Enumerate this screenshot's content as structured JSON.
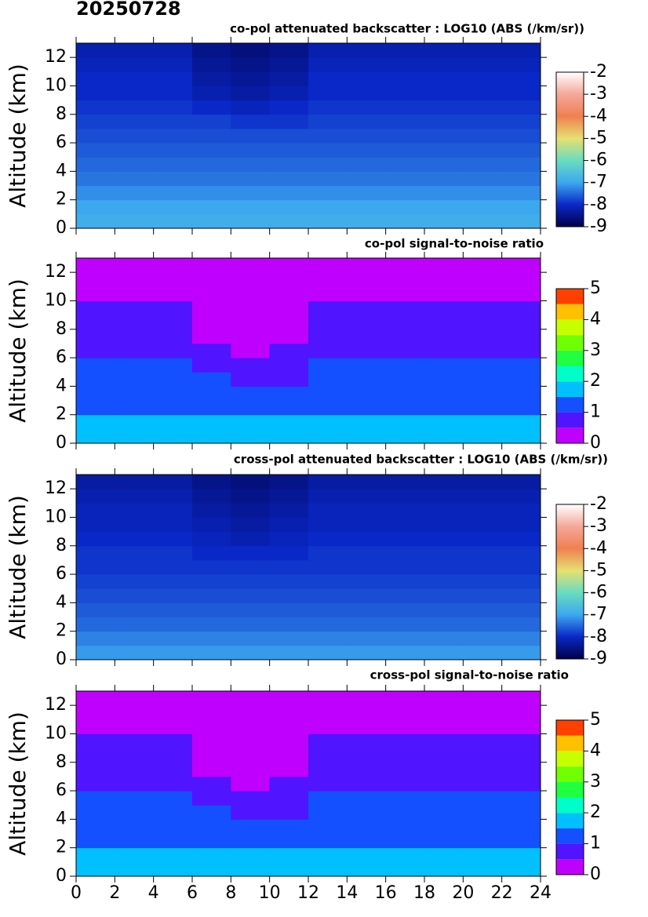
{
  "title": "20250728",
  "chart_data": [
    {
      "type": "heatmap",
      "title": "co-pol attenuated backscatter : LOG10 (ABS (/km/sr))",
      "ylabel": "Altitude (km)",
      "x_bins": [
        0,
        2,
        4,
        6,
        8,
        10,
        12,
        14,
        16,
        18,
        20,
        22,
        24
      ],
      "y_bins": [
        0,
        1,
        2,
        3,
        4,
        5,
        6,
        7,
        8,
        9,
        10,
        11,
        12,
        13
      ],
      "values": [
        [
          -6.9,
          -6.9,
          -6.9,
          -6.9,
          -6.9,
          -6.9,
          -6.9,
          -6.9,
          -6.9,
          -6.9,
          -6.9,
          -6.9
        ],
        [
          -7.0,
          -7.0,
          -7.0,
          -7.0,
          -7.0,
          -7.0,
          -7.0,
          -7.0,
          -7.0,
          -7.0,
          -7.0,
          -7.0
        ],
        [
          -7.2,
          -7.2,
          -7.2,
          -7.2,
          -7.2,
          -7.2,
          -7.2,
          -7.2,
          -7.2,
          -7.2,
          -7.2,
          -7.2
        ],
        [
          -7.4,
          -7.4,
          -7.4,
          -7.4,
          -7.4,
          -7.4,
          -7.4,
          -7.4,
          -7.4,
          -7.4,
          -7.4,
          -7.4
        ],
        [
          -7.5,
          -7.5,
          -7.5,
          -7.5,
          -7.5,
          -7.5,
          -7.5,
          -7.5,
          -7.5,
          -7.5,
          -7.5,
          -7.5
        ],
        [
          -7.6,
          -7.6,
          -7.6,
          -7.6,
          -7.6,
          -7.6,
          -7.6,
          -7.6,
          -7.6,
          -7.6,
          -7.6,
          -7.6
        ],
        [
          -7.7,
          -7.7,
          -7.7,
          -7.7,
          -7.7,
          -7.7,
          -7.7,
          -7.7,
          -7.7,
          -7.7,
          -7.7,
          -7.7
        ],
        [
          -7.8,
          -7.8,
          -7.8,
          -7.8,
          -7.9,
          -7.9,
          -7.8,
          -7.8,
          -7.8,
          -7.8,
          -7.8,
          -7.8
        ],
        [
          -7.9,
          -7.9,
          -7.9,
          -8.0,
          -8.1,
          -8.0,
          -7.9,
          -7.9,
          -7.9,
          -7.9,
          -7.9,
          -7.9
        ],
        [
          -8.0,
          -8.0,
          -8.0,
          -8.2,
          -8.3,
          -8.2,
          -8.0,
          -8.0,
          -8.0,
          -8.0,
          -8.0,
          -8.0
        ],
        [
          -8.0,
          -8.0,
          -8.0,
          -8.3,
          -8.4,
          -8.3,
          -8.0,
          -8.0,
          -8.0,
          -8.0,
          -8.0,
          -8.0
        ],
        [
          -8.1,
          -8.1,
          -8.1,
          -8.4,
          -8.5,
          -8.4,
          -8.1,
          -8.1,
          -8.1,
          -8.1,
          -8.1,
          -8.1
        ],
        [
          -8.2,
          -8.2,
          -8.2,
          -8.5,
          -8.6,
          -8.5,
          -8.2,
          -8.2,
          -8.2,
          -8.2,
          -8.2,
          -8.2
        ]
      ],
      "xlim": [
        0,
        24
      ],
      "xticks": [
        0,
        2,
        4,
        6,
        8,
        10,
        12,
        14,
        16,
        18,
        20,
        22,
        24
      ],
      "show_xtick_labels": false,
      "ylim": [
        0,
        13
      ],
      "yticks": [
        0,
        2,
        4,
        6,
        8,
        10,
        12
      ],
      "colorbar": {
        "lim": [
          -9,
          -2
        ],
        "ticks": [
          -9,
          -8,
          -7,
          -6,
          -5,
          -4,
          -3,
          -2
        ],
        "discrete": false,
        "colors": [
          "#00004a",
          "#0a28c8",
          "#3ca8f0",
          "#6adcc0",
          "#e6e070",
          "#f08050",
          "#f4a898",
          "#ffffff"
        ]
      }
    },
    {
      "type": "heatmap",
      "title": "co-pol signal-to-noise ratio",
      "ylabel": "Altitude (km)",
      "x_bins": [
        0,
        2,
        4,
        6,
        8,
        10,
        12,
        14,
        16,
        18,
        20,
        22,
        24
      ],
      "y_bins": [
        0,
        1,
        2,
        3,
        4,
        5,
        6,
        7,
        8,
        9,
        10,
        11,
        12,
        13
      ],
      "values": [
        [
          1.8,
          1.8,
          1.8,
          1.8,
          1.8,
          1.8,
          1.8,
          1.8,
          1.8,
          1.8,
          1.8,
          1.8
        ],
        [
          1.8,
          1.8,
          1.8,
          1.8,
          1.8,
          1.8,
          1.8,
          1.8,
          1.8,
          1.8,
          1.8,
          1.8
        ],
        [
          1.2,
          1.2,
          1.2,
          1.2,
          1.2,
          1.2,
          1.2,
          1.2,
          1.2,
          1.2,
          1.2,
          1.2
        ],
        [
          1.2,
          1.2,
          1.2,
          1.2,
          1.2,
          1.2,
          1.2,
          1.2,
          1.2,
          1.2,
          1.2,
          1.2
        ],
        [
          1.2,
          1.2,
          1.2,
          1.2,
          0.7,
          0.7,
          1.2,
          1.2,
          1.2,
          1.2,
          1.2,
          1.2
        ],
        [
          1.2,
          1.2,
          1.2,
          0.7,
          0.7,
          0.7,
          1.2,
          1.2,
          1.2,
          1.2,
          1.2,
          1.2
        ],
        [
          0.7,
          0.7,
          0.7,
          0.7,
          0.4,
          0.7,
          0.7,
          0.7,
          0.7,
          0.7,
          0.7,
          0.7
        ],
        [
          0.7,
          0.7,
          0.7,
          0.4,
          0.4,
          0.4,
          0.7,
          0.7,
          0.7,
          0.7,
          0.7,
          0.7
        ],
        [
          0.7,
          0.7,
          0.7,
          0.3,
          0.3,
          0.3,
          0.7,
          0.7,
          0.7,
          0.7,
          0.7,
          0.7
        ],
        [
          0.6,
          0.6,
          0.6,
          0.3,
          0.2,
          0.3,
          0.6,
          0.6,
          0.6,
          0.6,
          0.6,
          0.6
        ],
        [
          0.4,
          0.4,
          0.4,
          0.2,
          0.1,
          0.2,
          0.4,
          0.4,
          0.4,
          0.4,
          0.4,
          0.4
        ],
        [
          0.3,
          0.3,
          0.3,
          0.1,
          0.1,
          0.1,
          0.3,
          0.3,
          0.3,
          0.3,
          0.3,
          0.3
        ],
        [
          0.2,
          0.2,
          0.2,
          0.1,
          0.1,
          0.1,
          0.2,
          0.2,
          0.2,
          0.2,
          0.2,
          0.2
        ]
      ],
      "xlim": [
        0,
        24
      ],
      "xticks": [
        0,
        2,
        4,
        6,
        8,
        10,
        12,
        14,
        16,
        18,
        20,
        22,
        24
      ],
      "show_xtick_labels": false,
      "ylim": [
        0,
        13
      ],
      "yticks": [
        0,
        2,
        4,
        6,
        8,
        10,
        12
      ],
      "colorbar": {
        "lim": [
          0,
          5
        ],
        "ticks": [
          0,
          1,
          2,
          3,
          4,
          5
        ],
        "discrete": true,
        "colors": [
          "#c000ff",
          "#5014ff",
          "#1450ff",
          "#00c0ff",
          "#00ffc8",
          "#20ff40",
          "#70ff00",
          "#c8ff00",
          "#ffc000",
          "#ff4000"
        ]
      }
    },
    {
      "type": "heatmap",
      "title": "cross-pol attenuated backscatter : LOG10 (ABS (/km/sr))",
      "ylabel": "Altitude (km)",
      "x_bins": [
        0,
        2,
        4,
        6,
        8,
        10,
        12,
        14,
        16,
        18,
        20,
        22,
        24
      ],
      "y_bins": [
        0,
        1,
        2,
        3,
        4,
        5,
        6,
        7,
        8,
        9,
        10,
        11,
        12,
        13
      ],
      "values": [
        [
          -7.1,
          -7.1,
          -7.1,
          -7.1,
          -7.1,
          -7.1,
          -7.1,
          -7.1,
          -7.1,
          -7.1,
          -7.1,
          -7.1
        ],
        [
          -7.3,
          -7.3,
          -7.3,
          -7.3,
          -7.3,
          -7.3,
          -7.3,
          -7.3,
          -7.3,
          -7.3,
          -7.3,
          -7.3
        ],
        [
          -7.5,
          -7.5,
          -7.5,
          -7.5,
          -7.5,
          -7.5,
          -7.5,
          -7.5,
          -7.5,
          -7.5,
          -7.5,
          -7.5
        ],
        [
          -7.6,
          -7.6,
          -7.6,
          -7.6,
          -7.6,
          -7.6,
          -7.6,
          -7.6,
          -7.6,
          -7.6,
          -7.6,
          -7.6
        ],
        [
          -7.7,
          -7.7,
          -7.7,
          -7.7,
          -7.7,
          -7.7,
          -7.7,
          -7.7,
          -7.7,
          -7.7,
          -7.7,
          -7.7
        ],
        [
          -7.8,
          -7.8,
          -7.8,
          -7.8,
          -7.8,
          -7.8,
          -7.8,
          -7.8,
          -7.8,
          -7.8,
          -7.8,
          -7.8
        ],
        [
          -7.9,
          -7.9,
          -7.9,
          -7.9,
          -7.9,
          -7.9,
          -7.9,
          -7.9,
          -7.9,
          -7.9,
          -7.9,
          -7.9
        ],
        [
          -7.9,
          -7.9,
          -7.9,
          -8.0,
          -8.0,
          -8.0,
          -7.9,
          -7.9,
          -7.9,
          -7.9,
          -7.9,
          -7.9
        ],
        [
          -8.0,
          -8.0,
          -8.0,
          -8.1,
          -8.2,
          -8.1,
          -8.0,
          -8.0,
          -8.0,
          -8.0,
          -8.0,
          -8.0
        ],
        [
          -8.1,
          -8.1,
          -8.1,
          -8.2,
          -8.3,
          -8.2,
          -8.1,
          -8.1,
          -8.1,
          -8.1,
          -8.1,
          -8.1
        ],
        [
          -8.1,
          -8.1,
          -8.1,
          -8.3,
          -8.4,
          -8.3,
          -8.1,
          -8.1,
          -8.1,
          -8.1,
          -8.1,
          -8.1
        ],
        [
          -8.2,
          -8.2,
          -8.2,
          -8.4,
          -8.5,
          -8.4,
          -8.2,
          -8.2,
          -8.2,
          -8.2,
          -8.2,
          -8.2
        ],
        [
          -8.3,
          -8.3,
          -8.3,
          -8.5,
          -8.6,
          -8.5,
          -8.3,
          -8.3,
          -8.3,
          -8.3,
          -8.3,
          -8.3
        ]
      ],
      "xlim": [
        0,
        24
      ],
      "xticks": [
        0,
        2,
        4,
        6,
        8,
        10,
        12,
        14,
        16,
        18,
        20,
        22,
        24
      ],
      "show_xtick_labels": false,
      "ylim": [
        0,
        13
      ],
      "yticks": [
        0,
        2,
        4,
        6,
        8,
        10,
        12
      ],
      "colorbar": {
        "lim": [
          -9,
          -2
        ],
        "ticks": [
          -9,
          -8,
          -7,
          -6,
          -5,
          -4,
          -3,
          -2
        ],
        "discrete": false,
        "colors": [
          "#00004a",
          "#0a28c8",
          "#3ca8f0",
          "#6adcc0",
          "#e6e070",
          "#f08050",
          "#f4a898",
          "#ffffff"
        ]
      }
    },
    {
      "type": "heatmap",
      "title": "cross-pol signal-to-noise ratio",
      "ylabel": "Altitude (km)",
      "x_bins": [
        0,
        2,
        4,
        6,
        8,
        10,
        12,
        14,
        16,
        18,
        20,
        22,
        24
      ],
      "y_bins": [
        0,
        1,
        2,
        3,
        4,
        5,
        6,
        7,
        8,
        9,
        10,
        11,
        12,
        13
      ],
      "values": [
        [
          1.8,
          1.8,
          1.8,
          1.8,
          1.8,
          1.8,
          1.8,
          1.8,
          1.8,
          1.8,
          1.8,
          1.8
        ],
        [
          1.8,
          1.8,
          1.8,
          1.8,
          1.8,
          1.8,
          1.8,
          1.8,
          1.8,
          1.8,
          1.8,
          1.8
        ],
        [
          1.2,
          1.2,
          1.2,
          1.2,
          1.2,
          1.2,
          1.2,
          1.2,
          1.2,
          1.2,
          1.2,
          1.2
        ],
        [
          1.2,
          1.2,
          1.2,
          1.2,
          1.2,
          1.2,
          1.2,
          1.2,
          1.2,
          1.2,
          1.2,
          1.2
        ],
        [
          1.2,
          1.2,
          1.2,
          1.2,
          0.7,
          0.7,
          1.2,
          1.2,
          1.2,
          1.2,
          1.2,
          1.2
        ],
        [
          1.2,
          1.2,
          1.2,
          0.7,
          0.7,
          0.7,
          1.2,
          1.2,
          1.2,
          1.2,
          1.2,
          1.2
        ],
        [
          0.7,
          0.7,
          0.7,
          0.7,
          0.4,
          0.7,
          0.7,
          0.7,
          0.7,
          0.7,
          0.7,
          0.7
        ],
        [
          0.7,
          0.7,
          0.7,
          0.4,
          0.4,
          0.4,
          0.7,
          0.7,
          0.7,
          0.7,
          0.7,
          0.7
        ],
        [
          0.7,
          0.7,
          0.7,
          0.3,
          0.3,
          0.3,
          0.7,
          0.7,
          0.7,
          0.7,
          0.7,
          0.7
        ],
        [
          0.6,
          0.6,
          0.6,
          0.3,
          0.2,
          0.3,
          0.6,
          0.6,
          0.6,
          0.6,
          0.6,
          0.6
        ],
        [
          0.4,
          0.4,
          0.4,
          0.2,
          0.1,
          0.2,
          0.4,
          0.4,
          0.4,
          0.4,
          0.4,
          0.4
        ],
        [
          0.3,
          0.3,
          0.3,
          0.1,
          0.1,
          0.1,
          0.3,
          0.3,
          0.3,
          0.3,
          0.3,
          0.3
        ],
        [
          0.2,
          0.2,
          0.2,
          0.1,
          0.1,
          0.1,
          0.2,
          0.2,
          0.2,
          0.2,
          0.2,
          0.2
        ]
      ],
      "xlim": [
        0,
        24
      ],
      "xticks": [
        0,
        2,
        4,
        6,
        8,
        10,
        12,
        14,
        16,
        18,
        20,
        22,
        24
      ],
      "show_xtick_labels": true,
      "ylim": [
        0,
        13
      ],
      "yticks": [
        0,
        2,
        4,
        6,
        8,
        10,
        12
      ],
      "colorbar": {
        "lim": [
          0,
          5
        ],
        "ticks": [
          0,
          1,
          2,
          3,
          4,
          5
        ],
        "discrete": true,
        "colors": [
          "#c000ff",
          "#5014ff",
          "#1450ff",
          "#00c0ff",
          "#00ffc8",
          "#20ff40",
          "#70ff00",
          "#c8ff00",
          "#ffc000",
          "#ff4000"
        ]
      }
    }
  ]
}
